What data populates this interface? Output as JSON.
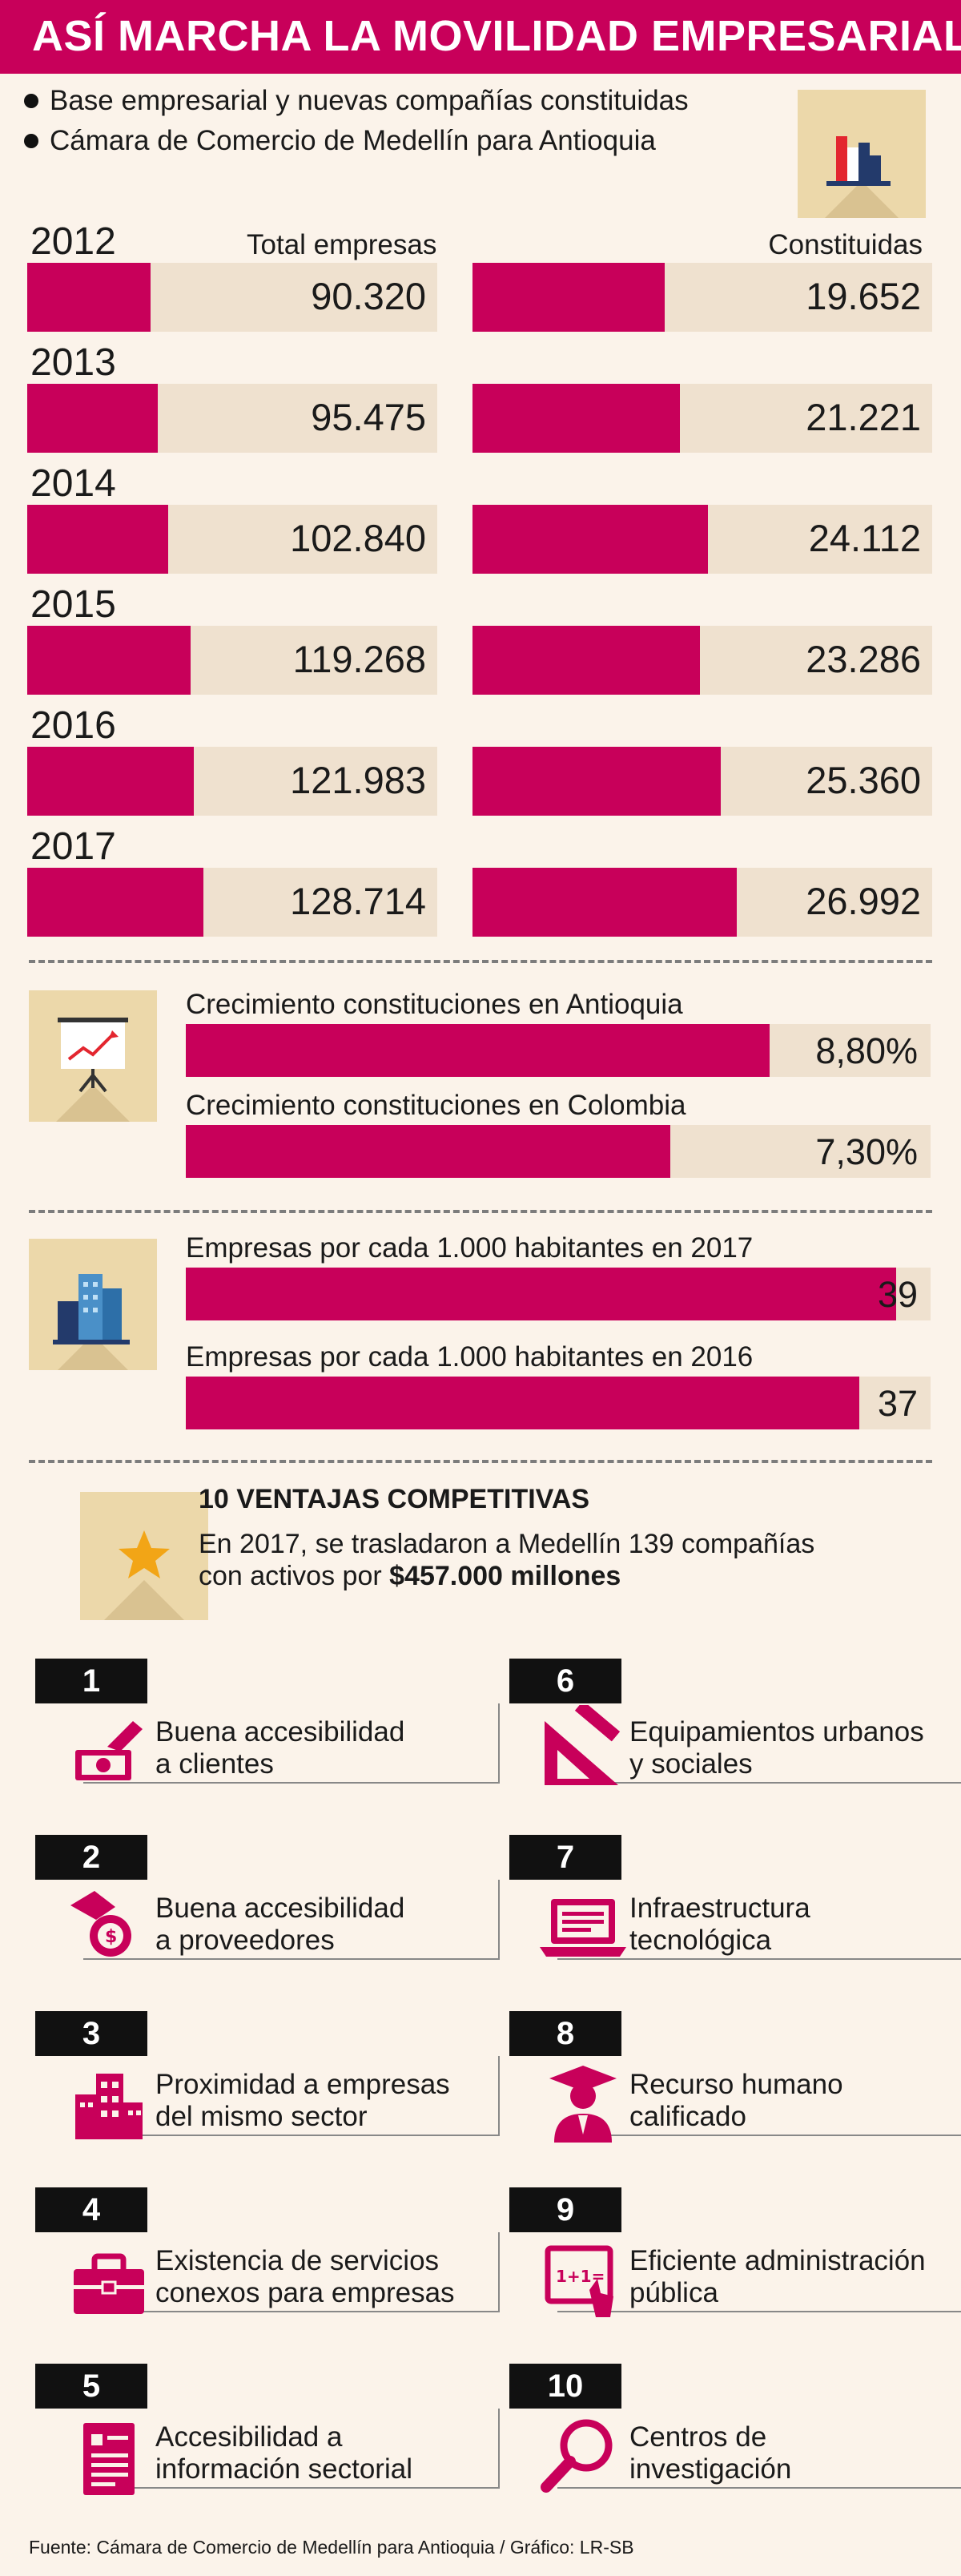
{
  "title": "ASÍ MARCHA LA MOVILIDAD EMPRESARIAL",
  "subtitles": [
    "Base empresarial y nuevas compañías constituidas",
    "Cámara de Comercio de Medellín para Antioquia"
  ],
  "colors": {
    "accent": "#c8005a",
    "track": "#efe1cf",
    "icon_bg": "#ecd8aa",
    "background": "#fbf3ea"
  },
  "chart_data": [
    {
      "type": "bar",
      "categories": [
        "2012",
        "2013",
        "2014",
        "2015",
        "2016",
        "2017"
      ],
      "series": [
        {
          "name": "Total empresas",
          "values": [
            90320,
            95475,
            102840,
            119268,
            121983,
            128714
          ],
          "labels": [
            "90.320",
            "95.475",
            "102.840",
            "119.268",
            "121.983",
            "128.714"
          ]
        },
        {
          "name": "Constituidas",
          "values": [
            19652,
            21221,
            24112,
            23286,
            25360,
            26992
          ],
          "labels": [
            "19.652",
            "21.221",
            "24.112",
            "23.286",
            "25.360",
            "26.992"
          ]
        }
      ]
    },
    {
      "type": "bar",
      "categories": [
        "Crecimiento constituciones en Antioquia",
        "Crecimiento constituciones en Colombia"
      ],
      "values": [
        8.8,
        7.3
      ],
      "labels": [
        "8,80%",
        "7,30%"
      ]
    },
    {
      "type": "bar",
      "categories": [
        "Empresas por cada 1.000 habitantes en 2017",
        "Empresas por cada 1.000 habitantes en 2016"
      ],
      "values": [
        39,
        37
      ],
      "labels": [
        "39",
        "37"
      ]
    }
  ],
  "advantages": {
    "title": "10 VENTAJAS COMPETITIVAS",
    "line1": "En 2017, se trasladaron a Medellín 139 compañías",
    "line2_prefix": "con activos por ",
    "line2_bold": "$457.000 millones",
    "items": [
      {
        "num": "1",
        "line1": "Buena accesibilidad",
        "line2": "a clientes",
        "icon": "money-hand-icon"
      },
      {
        "num": "2",
        "line1": "Buena accesibilidad",
        "line2": "a proveedores",
        "icon": "coin-hand-icon"
      },
      {
        "num": "3",
        "line1": "Proximidad a empresas",
        "line2": "del mismo sector",
        "icon": "buildings-icon"
      },
      {
        "num": "4",
        "line1": "Existencia de servicios",
        "line2": "conexos para empresas",
        "icon": "briefcase-icon"
      },
      {
        "num": "5",
        "line1": "Accesibilidad a",
        "line2": "información sectorial",
        "icon": "document-icon"
      },
      {
        "num": "6",
        "line1": "Equipamientos urbanos",
        "line2": "y sociales",
        "icon": "set-square-icon"
      },
      {
        "num": "7",
        "line1": "Infraestructura",
        "line2": "tecnológica",
        "icon": "laptop-icon"
      },
      {
        "num": "8",
        "line1": "Recurso humano",
        "line2": "calificado",
        "icon": "graduate-icon"
      },
      {
        "num": "9",
        "line1": "Eficiente administración",
        "line2": "pública",
        "icon": "board-hand-icon"
      },
      {
        "num": "10",
        "line1": "Centros de",
        "line2": "investigación",
        "icon": "magnifier-icon"
      }
    ]
  },
  "footer": "Fuente: Cámara de Comercio de Medellín para Antioquia  / Gráfico: LR-SB"
}
